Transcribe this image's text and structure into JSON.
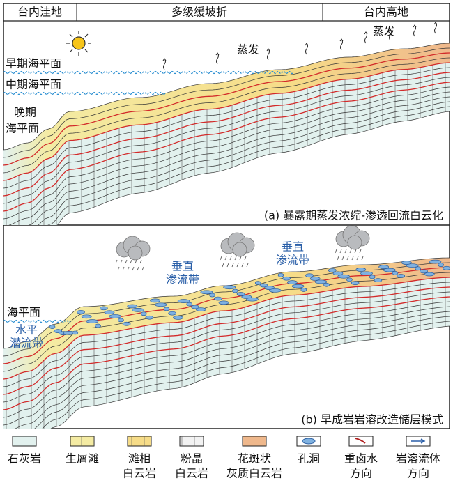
{
  "header": {
    "columns": [
      "台内洼地",
      "多级缓坡折",
      "台内高地"
    ]
  },
  "panel_a": {
    "sea_levels": [
      "早期海平面",
      "中期海平面"
    ],
    "late_sea_level": [
      "晚期",
      "海平面"
    ],
    "evaporation": [
      "蒸发",
      "蒸发"
    ],
    "caption": "(a) 暴露期蒸发浓缩-渗透回流白云化"
  },
  "panel_b": {
    "vadose_zones": [
      [
        "垂直",
        "渗流带"
      ],
      [
        "垂直",
        "渗流带"
      ]
    ],
    "sea_level": "海平面",
    "phreatic_zone": [
      "水平",
      "潜流带"
    ],
    "caption": "(b) 早成岩岩溶改造储层模式"
  },
  "legend": {
    "items": [
      [
        "石灰岩"
      ],
      [
        "生屑滩"
      ],
      [
        "滩相",
        "白云岩"
      ],
      [
        "粉晶",
        "白云岩"
      ],
      [
        "花斑状",
        "灰质白云岩"
      ],
      [
        "孔洞"
      ],
      [
        "重卤水",
        "方向"
      ],
      [
        "岩溶流体",
        "方向"
      ]
    ]
  }
}
